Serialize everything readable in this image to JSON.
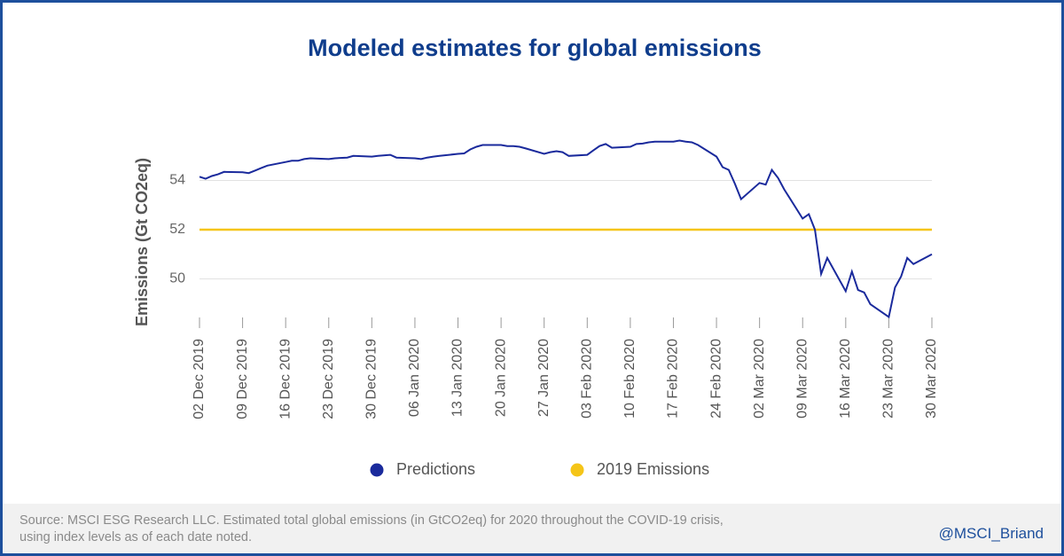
{
  "chart_data": {
    "type": "line",
    "title": "Modeled estimates for global emissions",
    "ylabel": "Emissions (Gt CO2eq)",
    "x": [
      "2019-12-02",
      "2019-12-03",
      "2019-12-04",
      "2019-12-05",
      "2019-12-06",
      "2019-12-09",
      "2019-12-10",
      "2019-12-11",
      "2019-12-12",
      "2019-12-13",
      "2019-12-16",
      "2019-12-17",
      "2019-12-18",
      "2019-12-19",
      "2019-12-20",
      "2019-12-23",
      "2019-12-24",
      "2019-12-26",
      "2019-12-27",
      "2019-12-30",
      "2019-12-31",
      "2020-01-02",
      "2020-01-03",
      "2020-01-06",
      "2020-01-07",
      "2020-01-08",
      "2020-01-09",
      "2020-01-10",
      "2020-01-13",
      "2020-01-14",
      "2020-01-15",
      "2020-01-16",
      "2020-01-17",
      "2020-01-20",
      "2020-01-21",
      "2020-01-22",
      "2020-01-23",
      "2020-01-24",
      "2020-01-27",
      "2020-01-28",
      "2020-01-29",
      "2020-01-30",
      "2020-01-31",
      "2020-02-03",
      "2020-02-04",
      "2020-02-05",
      "2020-02-06",
      "2020-02-07",
      "2020-02-10",
      "2020-02-11",
      "2020-02-12",
      "2020-02-13",
      "2020-02-14",
      "2020-02-17",
      "2020-02-18",
      "2020-02-19",
      "2020-02-20",
      "2020-02-21",
      "2020-02-24",
      "2020-02-25",
      "2020-02-26",
      "2020-02-27",
      "2020-02-28",
      "2020-03-02",
      "2020-03-03",
      "2020-03-04",
      "2020-03-05",
      "2020-03-06",
      "2020-03-09",
      "2020-03-10",
      "2020-03-11",
      "2020-03-12",
      "2020-03-13",
      "2020-03-16",
      "2020-03-17",
      "2020-03-18",
      "2020-03-19",
      "2020-03-20",
      "2020-03-23",
      "2020-03-24",
      "2020-03-25",
      "2020-03-26",
      "2020-03-27",
      "2020-03-30"
    ],
    "series": [
      {
        "name": "Predictions",
        "color": "#1a2a9c",
        "values": [
          54.15,
          54.07,
          54.18,
          54.25,
          54.35,
          54.33,
          54.3,
          54.4,
          54.5,
          54.6,
          54.75,
          54.8,
          54.8,
          54.87,
          54.9,
          54.87,
          54.9,
          54.93,
          55.0,
          54.97,
          55.0,
          55.04,
          54.93,
          54.9,
          54.87,
          54.93,
          54.97,
          55.0,
          55.08,
          55.1,
          55.26,
          55.37,
          55.44,
          55.44,
          55.4,
          55.4,
          55.37,
          55.3,
          55.08,
          55.15,
          55.19,
          55.15,
          55.0,
          55.04,
          55.22,
          55.4,
          55.48,
          55.33,
          55.37,
          55.48,
          55.5,
          55.55,
          55.58,
          55.58,
          55.62,
          55.58,
          55.55,
          55.44,
          54.97,
          54.54,
          54.43,
          53.86,
          53.24,
          53.9,
          53.83,
          54.43,
          54.1,
          53.64,
          52.45,
          52.63,
          52.0,
          50.2,
          50.85,
          49.5,
          50.3,
          49.55,
          49.45,
          48.97,
          48.45,
          49.65,
          50.1,
          50.85,
          50.6,
          51.0
        ]
      },
      {
        "name": "2019 Emissions",
        "color": "#f5c518",
        "value": 52
      }
    ],
    "xlim": [
      "2019-12-02",
      "2020-03-30"
    ],
    "xticks": [
      {
        "value": "2019-12-02",
        "label": "02 Dec 2019"
      },
      {
        "value": "2019-12-09",
        "label": "09 Dec 2019"
      },
      {
        "value": "2019-12-16",
        "label": "16 Dec 2019"
      },
      {
        "value": "2019-12-23",
        "label": "23 Dec 2019"
      },
      {
        "value": "2019-12-30",
        "label": "30 Dec 2019"
      },
      {
        "value": "2020-01-06",
        "label": "06 Jan 2020"
      },
      {
        "value": "2020-01-13",
        "label": "13 Jan 2020"
      },
      {
        "value": "2020-01-20",
        "label": "20 Jan 2020"
      },
      {
        "value": "2020-01-27",
        "label": "27 Jan 2020"
      },
      {
        "value": "2020-02-03",
        "label": "03 Feb 2020"
      },
      {
        "value": "2020-02-10",
        "label": "10 Feb 2020"
      },
      {
        "value": "2020-02-17",
        "label": "17 Feb 2020"
      },
      {
        "value": "2020-02-24",
        "label": "24 Feb 2020"
      },
      {
        "value": "2020-03-02",
        "label": "02 Mar 2020"
      },
      {
        "value": "2020-03-09",
        "label": "09 Mar 2020"
      },
      {
        "value": "2020-03-16",
        "label": "16 Mar 2020"
      },
      {
        "value": "2020-03-23",
        "label": "23 Mar 2020"
      },
      {
        "value": "2020-03-30",
        "label": "30 Mar 2020"
      }
    ],
    "ylim": [
      48,
      56
    ],
    "yticks": [
      50,
      52,
      54
    ],
    "grid": true
  },
  "footer": {
    "source": "Source: MSCI ESG Research LLC. Estimated total global emissions (in GtCO2eq) for 2020 throughout the COVID-19 crisis, using index levels as of each date noted.",
    "handle": "@MSCI_Briand"
  }
}
